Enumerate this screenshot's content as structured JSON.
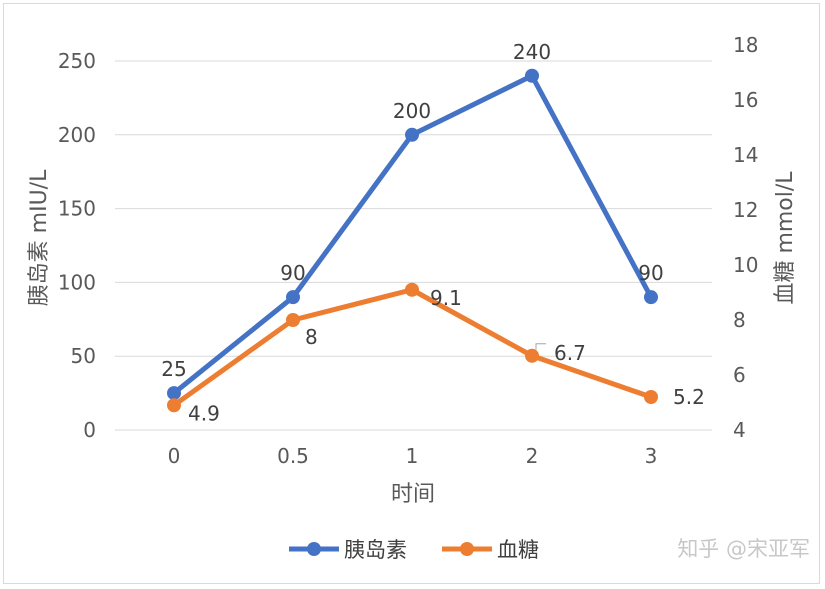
{
  "chart_data": {
    "type": "line",
    "categories": [
      "0",
      "0.5",
      "1",
      "2",
      "3"
    ],
    "xlabel": "时间",
    "y_left": {
      "label": "胰岛素 mIU/L",
      "ylim": [
        0,
        250
      ],
      "ticks": [
        0,
        50,
        100,
        150,
        200,
        250
      ]
    },
    "y_right": {
      "label": "血糖 mmol/L",
      "ylim": [
        4,
        18
      ],
      "ticks": [
        4,
        6,
        8,
        10,
        12,
        14,
        16,
        18
      ]
    },
    "grid": true,
    "legend_position": "bottom",
    "series": [
      {
        "name": "胰岛素",
        "axis": "left",
        "color": "#4472c4",
        "values": [
          25,
          90,
          200,
          240,
          90
        ],
        "labels": [
          "25",
          "90",
          "200",
          "240",
          "90"
        ]
      },
      {
        "name": "血糖",
        "axis": "right",
        "color": "#ed7d31",
        "values": [
          4.9,
          8,
          9.1,
          6.7,
          5.2
        ],
        "labels": [
          "4.9",
          "8",
          "9.1",
          "6.7",
          "5.2"
        ]
      }
    ]
  },
  "watermark": "知乎 @宋亚军"
}
